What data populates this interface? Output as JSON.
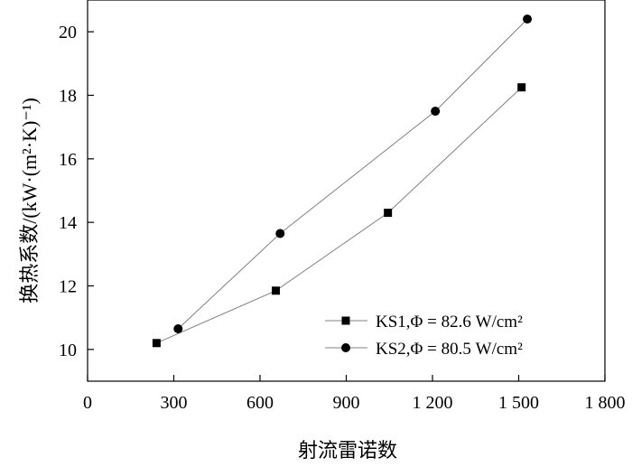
{
  "chart_data": {
    "type": "line",
    "title": "",
    "xlabel": "射流雷诺数",
    "ylabel": "换热系数/(kW·(m²·K)⁻¹)",
    "xlim": [
      0,
      1800
    ],
    "ylim": [
      9,
      21
    ],
    "xticks": [
      0,
      300,
      600,
      900,
      1200,
      1500,
      1800
    ],
    "xtick_labels": [
      "0",
      "300",
      "600",
      "900",
      "1 200",
      "1 500",
      "1 800"
    ],
    "yticks": [
      10,
      12,
      14,
      16,
      18,
      20
    ],
    "ytick_labels": [
      "10",
      "12",
      "14",
      "16",
      "18",
      "20"
    ],
    "grid": false,
    "legend_position": "bottom-right",
    "series": [
      {
        "name": "KS1,Φ = 82.6 W/cm²",
        "marker": "square",
        "color": "#000000",
        "line_color": "#808080",
        "x": [
          240,
          655,
          1045,
          1510
        ],
        "y": [
          10.2,
          11.85,
          14.3,
          18.25
        ]
      },
      {
        "name": "KS2,Φ = 80.5 W/cm²",
        "marker": "circle",
        "color": "#000000",
        "line_color": "#808080",
        "x": [
          315,
          670,
          1210,
          1530
        ],
        "y": [
          10.65,
          13.65,
          17.5,
          20.4
        ]
      }
    ]
  }
}
